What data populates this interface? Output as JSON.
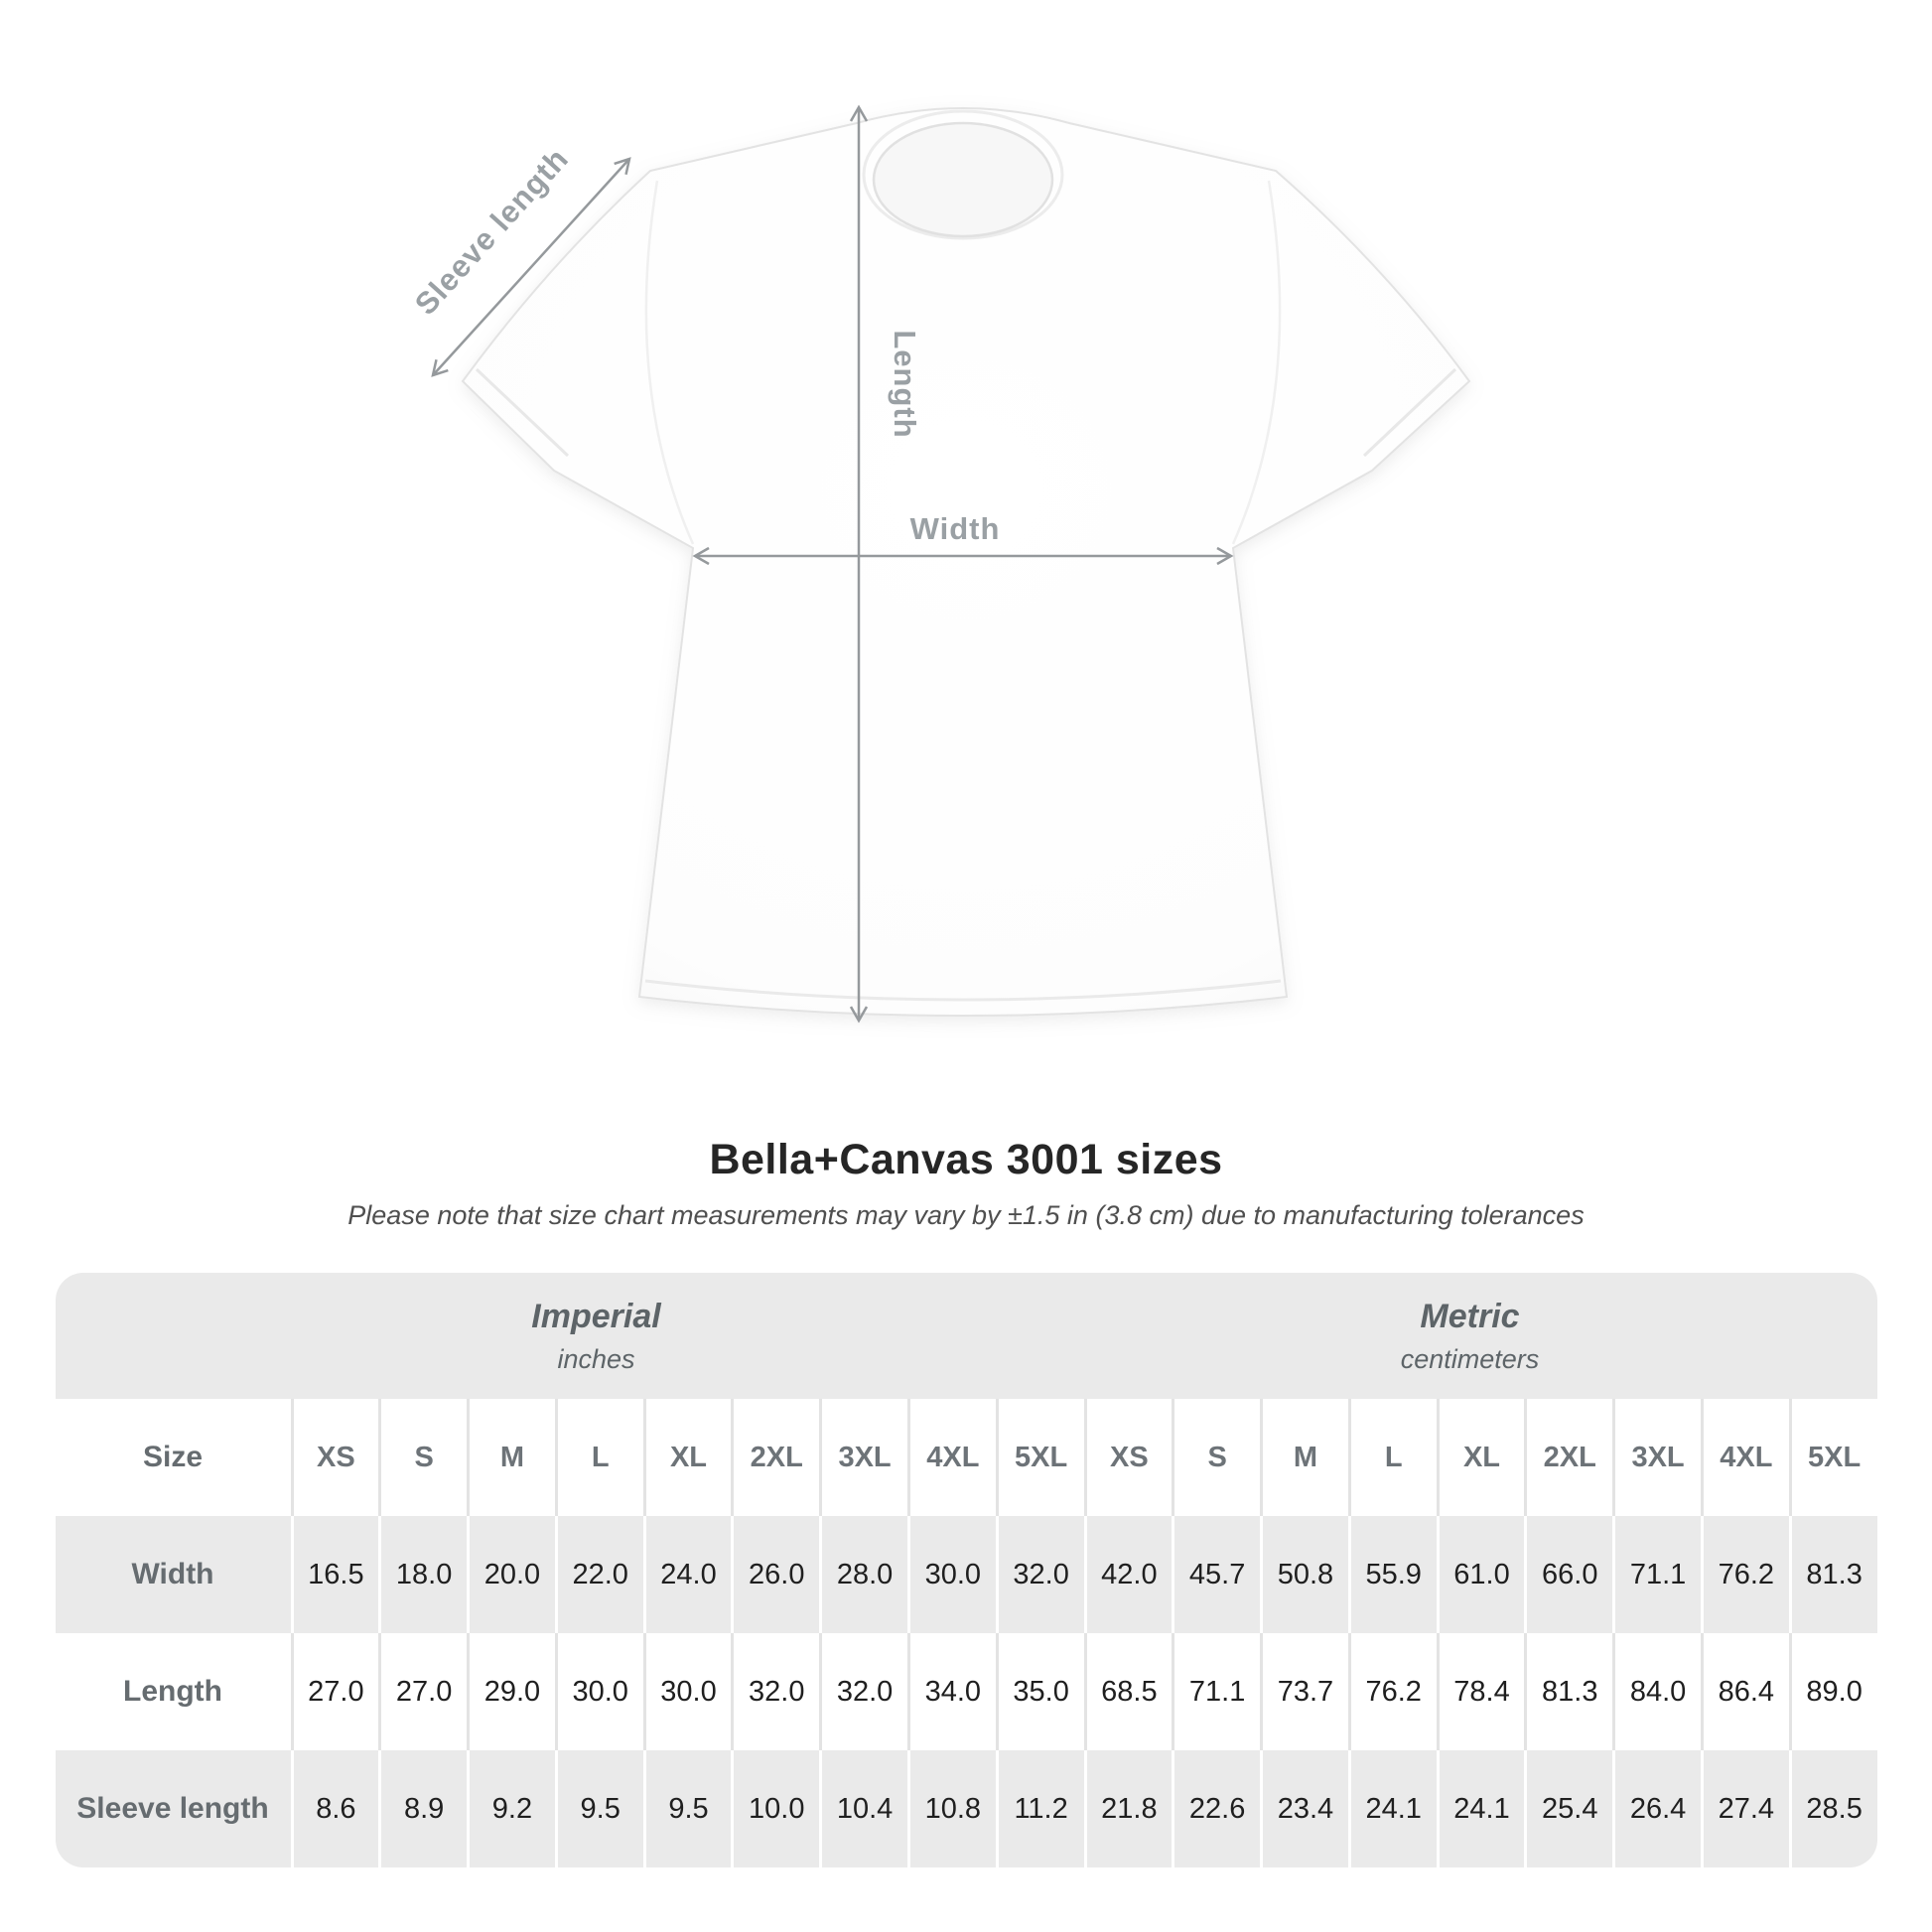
{
  "diagram": {
    "sleeve_length_label": "Sleeve length",
    "length_label": "Length",
    "width_label": "Width"
  },
  "title": "Bella+Canvas 3001 sizes",
  "subtitle": "Please note that size chart measurements may vary by ±1.5 in (3.8 cm) due to manufacturing tolerances",
  "colors": {
    "table_gray": "#eaeaea",
    "divider_light": "#e3e3e3",
    "header_text": "#5d6468",
    "value_text": "#1f1f1f",
    "annotation_gray": "#9aa0a4"
  },
  "size_table": {
    "groups": [
      {
        "name": "Imperial",
        "unit": "inches"
      },
      {
        "name": "Metric",
        "unit": "centimeters"
      }
    ],
    "size_header_label": "Size",
    "sizes_imperial": [
      "XS",
      "S",
      "M",
      "L",
      "XL",
      "2XL",
      "3XL",
      "4XL",
      "5XL"
    ],
    "sizes_metric": [
      "XS",
      "S",
      "M",
      "L",
      "XL",
      "2XL",
      "3XL",
      "4XL",
      "5XL"
    ],
    "rows": [
      {
        "label": "Width",
        "imperial": [
          "16.5",
          "18.0",
          "20.0",
          "22.0",
          "24.0",
          "26.0",
          "28.0",
          "30.0",
          "32.0"
        ],
        "metric": [
          "42.0",
          "45.7",
          "50.8",
          "55.9",
          "61.0",
          "66.0",
          "71.1",
          "76.2",
          "81.3"
        ]
      },
      {
        "label": "Length",
        "imperial": [
          "27.0",
          "27.0",
          "29.0",
          "30.0",
          "30.0",
          "32.0",
          "32.0",
          "34.0",
          "35.0"
        ],
        "metric": [
          "68.5",
          "71.1",
          "73.7",
          "76.2",
          "78.4",
          "81.3",
          "84.0",
          "86.4",
          "89.0"
        ]
      },
      {
        "label": "Sleeve length",
        "imperial": [
          "8.6",
          "8.9",
          "9.2",
          "9.5",
          "9.5",
          "10.0",
          "10.4",
          "10.8",
          "11.2"
        ],
        "metric": [
          "21.8",
          "22.6",
          "23.4",
          "24.1",
          "24.1",
          "25.4",
          "26.4",
          "27.4",
          "28.5"
        ]
      }
    ]
  },
  "chart_data": {
    "type": "table",
    "title": "Bella+Canvas 3001 sizes",
    "note": "Please note that size chart measurements may vary by ±1.5 in (3.8 cm) due to manufacturing tolerances",
    "column_groups": [
      {
        "name": "Imperial",
        "unit": "inches"
      },
      {
        "name": "Metric",
        "unit": "centimeters"
      }
    ],
    "sizes": [
      "XS",
      "S",
      "M",
      "L",
      "XL",
      "2XL",
      "3XL",
      "4XL",
      "5XL"
    ],
    "rows": [
      {
        "label": "Width",
        "imperial": [
          16.5,
          18.0,
          20.0,
          22.0,
          24.0,
          26.0,
          28.0,
          30.0,
          32.0
        ],
        "metric": [
          42.0,
          45.7,
          50.8,
          55.9,
          61.0,
          66.0,
          71.1,
          76.2,
          81.3
        ]
      },
      {
        "label": "Length",
        "imperial": [
          27.0,
          27.0,
          29.0,
          30.0,
          30.0,
          32.0,
          32.0,
          34.0,
          35.0
        ],
        "metric": [
          68.5,
          71.1,
          73.7,
          76.2,
          78.4,
          81.3,
          84.0,
          86.4,
          89.0
        ]
      },
      {
        "label": "Sleeve length",
        "imperial": [
          8.6,
          8.9,
          9.2,
          9.5,
          9.5,
          10.0,
          10.4,
          10.8,
          11.2
        ],
        "metric": [
          21.8,
          22.6,
          23.4,
          24.1,
          24.1,
          25.4,
          26.4,
          27.4,
          28.5
        ]
      }
    ],
    "measured_on_diagram": [
      "Sleeve length",
      "Length",
      "Width"
    ]
  }
}
